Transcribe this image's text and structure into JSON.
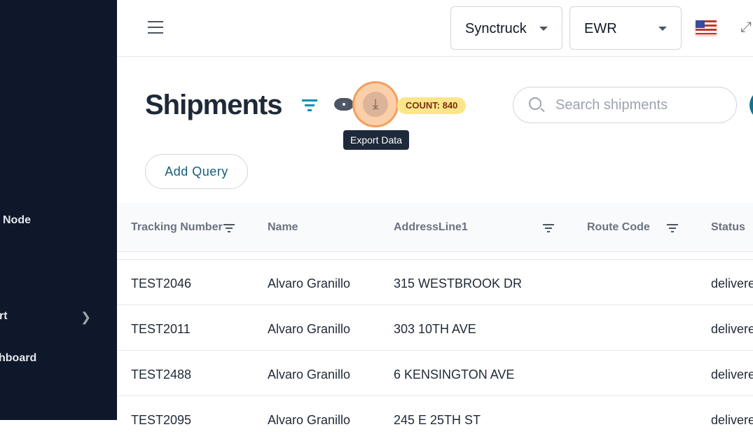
{
  "sidebar": {
    "items": [
      {
        "label": "Node"
      },
      {
        "label": "rt"
      },
      {
        "label": "hboard"
      }
    ]
  },
  "topbar": {
    "company": "Synctruck",
    "hub": "EWR",
    "language_icon": "us-flag-icon"
  },
  "page": {
    "title": "Shipments",
    "count_badge": "COUNT: 840",
    "export_tooltip": "Export Data",
    "search_placeholder": "Search shipments",
    "add_query": "Add Query"
  },
  "table": {
    "columns": [
      "Tracking Number",
      "Name",
      "AddressLine1",
      "Route Code",
      "Status"
    ],
    "rows": [
      {
        "tracking": "TEST2046",
        "name": "Alvaro Granillo",
        "address": "315 WESTBROOK DR",
        "route": "",
        "status": "delivered"
      },
      {
        "tracking": "TEST2011",
        "name": "Alvaro Granillo",
        "address": "303 10TH AVE",
        "route": "",
        "status": "delivered"
      },
      {
        "tracking": "TEST2488",
        "name": "Alvaro Granillo",
        "address": "6 KENSINGTON AVE",
        "route": "",
        "status": "delivered"
      },
      {
        "tracking": "TEST2095",
        "name": "Alvaro Granillo",
        "address": "245 E 25TH ST",
        "route": "",
        "status": "delivered"
      }
    ]
  },
  "colors": {
    "sidebar": "#0f172a",
    "accent": "#0891b2",
    "badge": "#fde68a",
    "highlight": "#f59e5b"
  }
}
